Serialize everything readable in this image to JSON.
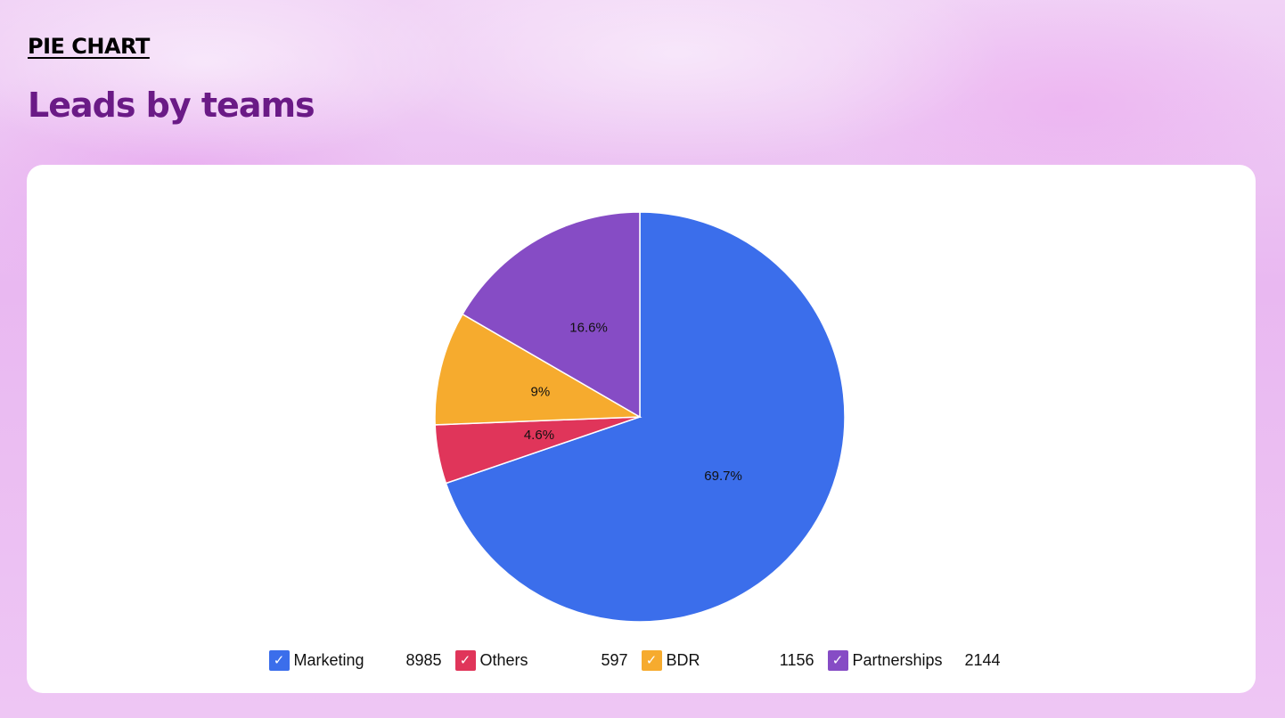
{
  "header": {
    "kicker": "PIE CHART",
    "title": "Leads by teams"
  },
  "chart_data": {
    "type": "pie",
    "slices": [
      {
        "name": "Marketing",
        "value": 8985,
        "percent_label": "69.7%",
        "color": "#3b6eeb"
      },
      {
        "name": "Others",
        "value": 597,
        "percent_label": "4.6%",
        "color": "#e0355a"
      },
      {
        "name": "BDR",
        "value": 1156,
        "percent_label": "9%",
        "color": "#f6ab2e"
      },
      {
        "name": "Partnerships",
        "value": 2144,
        "percent_label": "16.6%",
        "color": "#864cc5"
      }
    ],
    "start_angle": "12 o'clock",
    "direction": "clockwise",
    "legend_position": "bottom",
    "legend_checkmark": "✓"
  }
}
